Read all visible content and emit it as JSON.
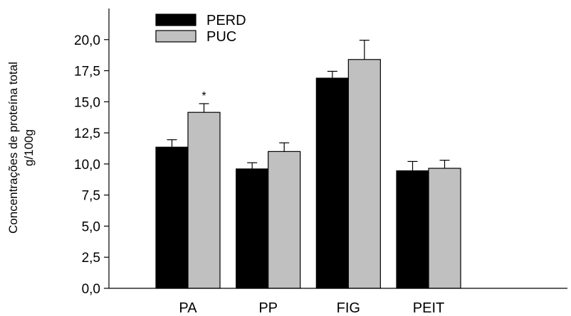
{
  "chart_data": {
    "type": "bar",
    "categories": [
      "PA",
      "PP",
      "FIG",
      "PEIT"
    ],
    "series": [
      {
        "name": "PERD",
        "color": "#000000",
        "values": [
          11.35,
          9.6,
          16.9,
          9.45
        ],
        "errors": [
          0.6,
          0.5,
          0.55,
          0.75
        ]
      },
      {
        "name": "PUC",
        "color": "#c0c0c0",
        "values": [
          14.15,
          11.0,
          18.4,
          9.65
        ],
        "errors": [
          0.7,
          0.7,
          1.55,
          0.65
        ]
      }
    ],
    "ylabel_lines": [
      "Concentrações de proteína total",
      "g/100g"
    ],
    "xlabel": "",
    "ylim": [
      0,
      22.5
    ],
    "yticks": [
      0,
      2.5,
      5,
      7.5,
      10,
      12.5,
      15,
      17.5,
      20
    ],
    "ytick_labels": [
      "0,0",
      "2,5",
      "5,0",
      "7,5",
      "10,0",
      "12,5",
      "15,0",
      "17,5",
      "20,0"
    ],
    "annotations": [
      {
        "text": "*",
        "category": "PA",
        "series": "PUC"
      }
    ],
    "legend_position": "top-left",
    "grid": false
  }
}
